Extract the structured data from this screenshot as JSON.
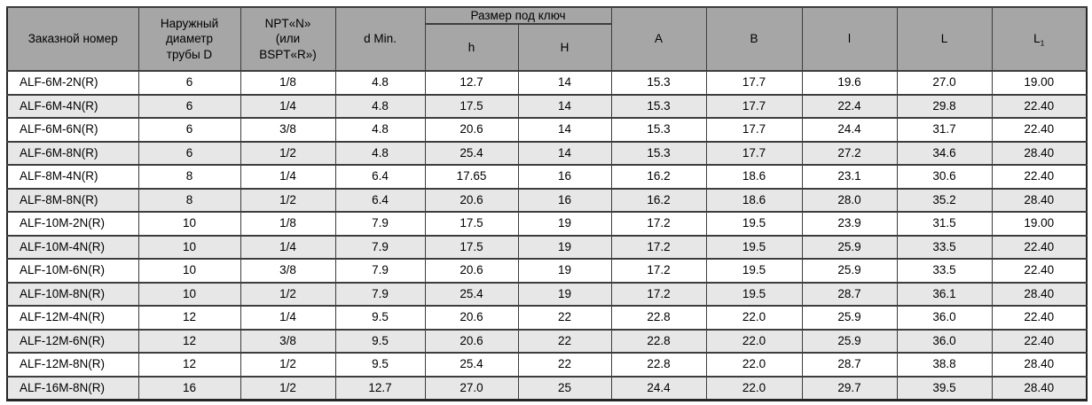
{
  "colors": {
    "header_bg": "#a6a6a6",
    "stripe_bg": "#e7e7e7",
    "row_bg": "#ffffff",
    "border": "#3d3d3d",
    "text": "#000000"
  },
  "table": {
    "headers": {
      "order_number": "Заказной номер",
      "outer_diameter": "Наружный\nдиаметр\nтрубы D",
      "thread": "NPT«N»\n(или\nBSPT«R»)",
      "d_min": "d Min.",
      "wrench_group": "Размер под ключ",
      "h_col": "h",
      "H_col": "H",
      "A_col": "A",
      "B_col": "B",
      "l_col": "l",
      "L_col": "L",
      "L1_base": "L",
      "L1_sub": "1"
    },
    "rows": [
      [
        "ALF-6M-2N(R)",
        "6",
        "1/8",
        "4.8",
        "12.7",
        "14",
        "15.3",
        "17.7",
        "19.6",
        "27.0",
        "19.00"
      ],
      [
        "ALF-6M-4N(R)",
        "6",
        "1/4",
        "4.8",
        "17.5",
        "14",
        "15.3",
        "17.7",
        "22.4",
        "29.8",
        "22.40"
      ],
      [
        "ALF-6M-6N(R)",
        "6",
        "3/8",
        "4.8",
        "20.6",
        "14",
        "15.3",
        "17.7",
        "24.4",
        "31.7",
        "22.40"
      ],
      [
        "ALF-6M-8N(R)",
        "6",
        "1/2",
        "4.8",
        "25.4",
        "14",
        "15.3",
        "17.7",
        "27.2",
        "34.6",
        "28.40"
      ],
      [
        "ALF-8M-4N(R)",
        "8",
        "1/4",
        "6.4",
        "17.65",
        "16",
        "16.2",
        "18.6",
        "23.1",
        "30.6",
        "22.40"
      ],
      [
        "ALF-8M-8N(R)",
        "8",
        "1/2",
        "6.4",
        "20.6",
        "16",
        "16.2",
        "18.6",
        "28.0",
        "35.2",
        "28.40"
      ],
      [
        "ALF-10M-2N(R)",
        "10",
        "1/8",
        "7.9",
        "17.5",
        "19",
        "17.2",
        "19.5",
        "23.9",
        "31.5",
        "19.00"
      ],
      [
        "ALF-10M-4N(R)",
        "10",
        "1/4",
        "7.9",
        "17.5",
        "19",
        "17.2",
        "19.5",
        "25.9",
        "33.5",
        "22.40"
      ],
      [
        "ALF-10M-6N(R)",
        "10",
        "3/8",
        "7.9",
        "20.6",
        "19",
        "17.2",
        "19.5",
        "25.9",
        "33.5",
        "22.40"
      ],
      [
        "ALF-10M-8N(R)",
        "10",
        "1/2",
        "7.9",
        "25.4",
        "19",
        "17.2",
        "19.5",
        "28.7",
        "36.1",
        "28.40"
      ],
      [
        "ALF-12M-4N(R)",
        "12",
        "1/4",
        "9.5",
        "20.6",
        "22",
        "22.8",
        "22.0",
        "25.9",
        "36.0",
        "22.40"
      ],
      [
        "ALF-12M-6N(R)",
        "12",
        "3/8",
        "9.5",
        "20.6",
        "22",
        "22.8",
        "22.0",
        "25.9",
        "36.0",
        "22.40"
      ],
      [
        "ALF-12M-8N(R)",
        "12",
        "1/2",
        "9.5",
        "25.4",
        "22",
        "22.8",
        "22.0",
        "28.7",
        "38.8",
        "28.40"
      ],
      [
        "ALF-16M-8N(R)",
        "16",
        "1/2",
        "12.7",
        "27.0",
        "25",
        "24.4",
        "22.0",
        "29.7",
        "39.5",
        "28.40"
      ]
    ]
  }
}
